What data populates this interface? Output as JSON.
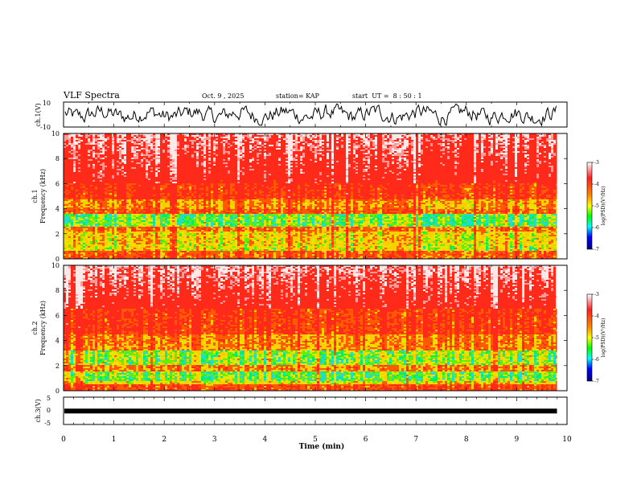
{
  "header": {
    "title": "VLF Spectra",
    "date": "Oct. 9 , 2025",
    "station": "station= KAP",
    "start": "start  UT =  8 : 50 : 1"
  },
  "chart_data": [
    {
      "type": "line",
      "panel": "ch1-waveform",
      "ylabel": "ch.1(V)",
      "ylim": [
        -10,
        10
      ],
      "yticks": [
        "10",
        "-10"
      ],
      "xlim": [
        0,
        10
      ],
      "data_xmax": 9.8,
      "series": [
        {
          "color": "#000000"
        }
      ]
    },
    {
      "type": "heatmap",
      "panel": "ch1-spectrogram",
      "ylabel": "ch.1",
      "ylabel2": "Frequency  (kHz)",
      "ylim": [
        0,
        10
      ],
      "yticks": [
        "0",
        "2",
        "4",
        "6",
        "8",
        "10"
      ],
      "xlim": [
        0,
        10
      ],
      "colorbar": {
        "label": "log(PSD)(V²/Hz)",
        "ticks": [
          "-3",
          "-4",
          "-5",
          "-6",
          "-7"
        ],
        "range": [
          -7,
          -3
        ]
      }
    },
    {
      "type": "heatmap",
      "panel": "ch2-spectrogram",
      "ylabel": "ch.2",
      "ylabel2": "Frequency  (kHz)",
      "ylim": [
        0,
        10
      ],
      "yticks": [
        "0",
        "2",
        "4",
        "6",
        "8",
        "10"
      ],
      "xlim": [
        0,
        10
      ],
      "colorbar": {
        "label": "log(PSD)(V²/Hz)",
        "ticks": [
          "-3",
          "-4",
          "-5",
          "-6",
          "-7"
        ],
        "range": [
          -7,
          -3
        ]
      }
    },
    {
      "type": "line",
      "panel": "ch3-waveform",
      "ylabel": "ch.3(V)",
      "ylim": [
        -5,
        5
      ],
      "yticks": [
        "5",
        "0",
        "-5"
      ],
      "xlim": [
        0,
        10
      ],
      "xlabel": "Time  (min)",
      "xticks": [
        "0",
        "1",
        "2",
        "3",
        "4",
        "5",
        "6",
        "7",
        "8",
        "9",
        "10"
      ],
      "series": [
        {
          "color": "#000000",
          "level": -0.1
        }
      ]
    }
  ]
}
